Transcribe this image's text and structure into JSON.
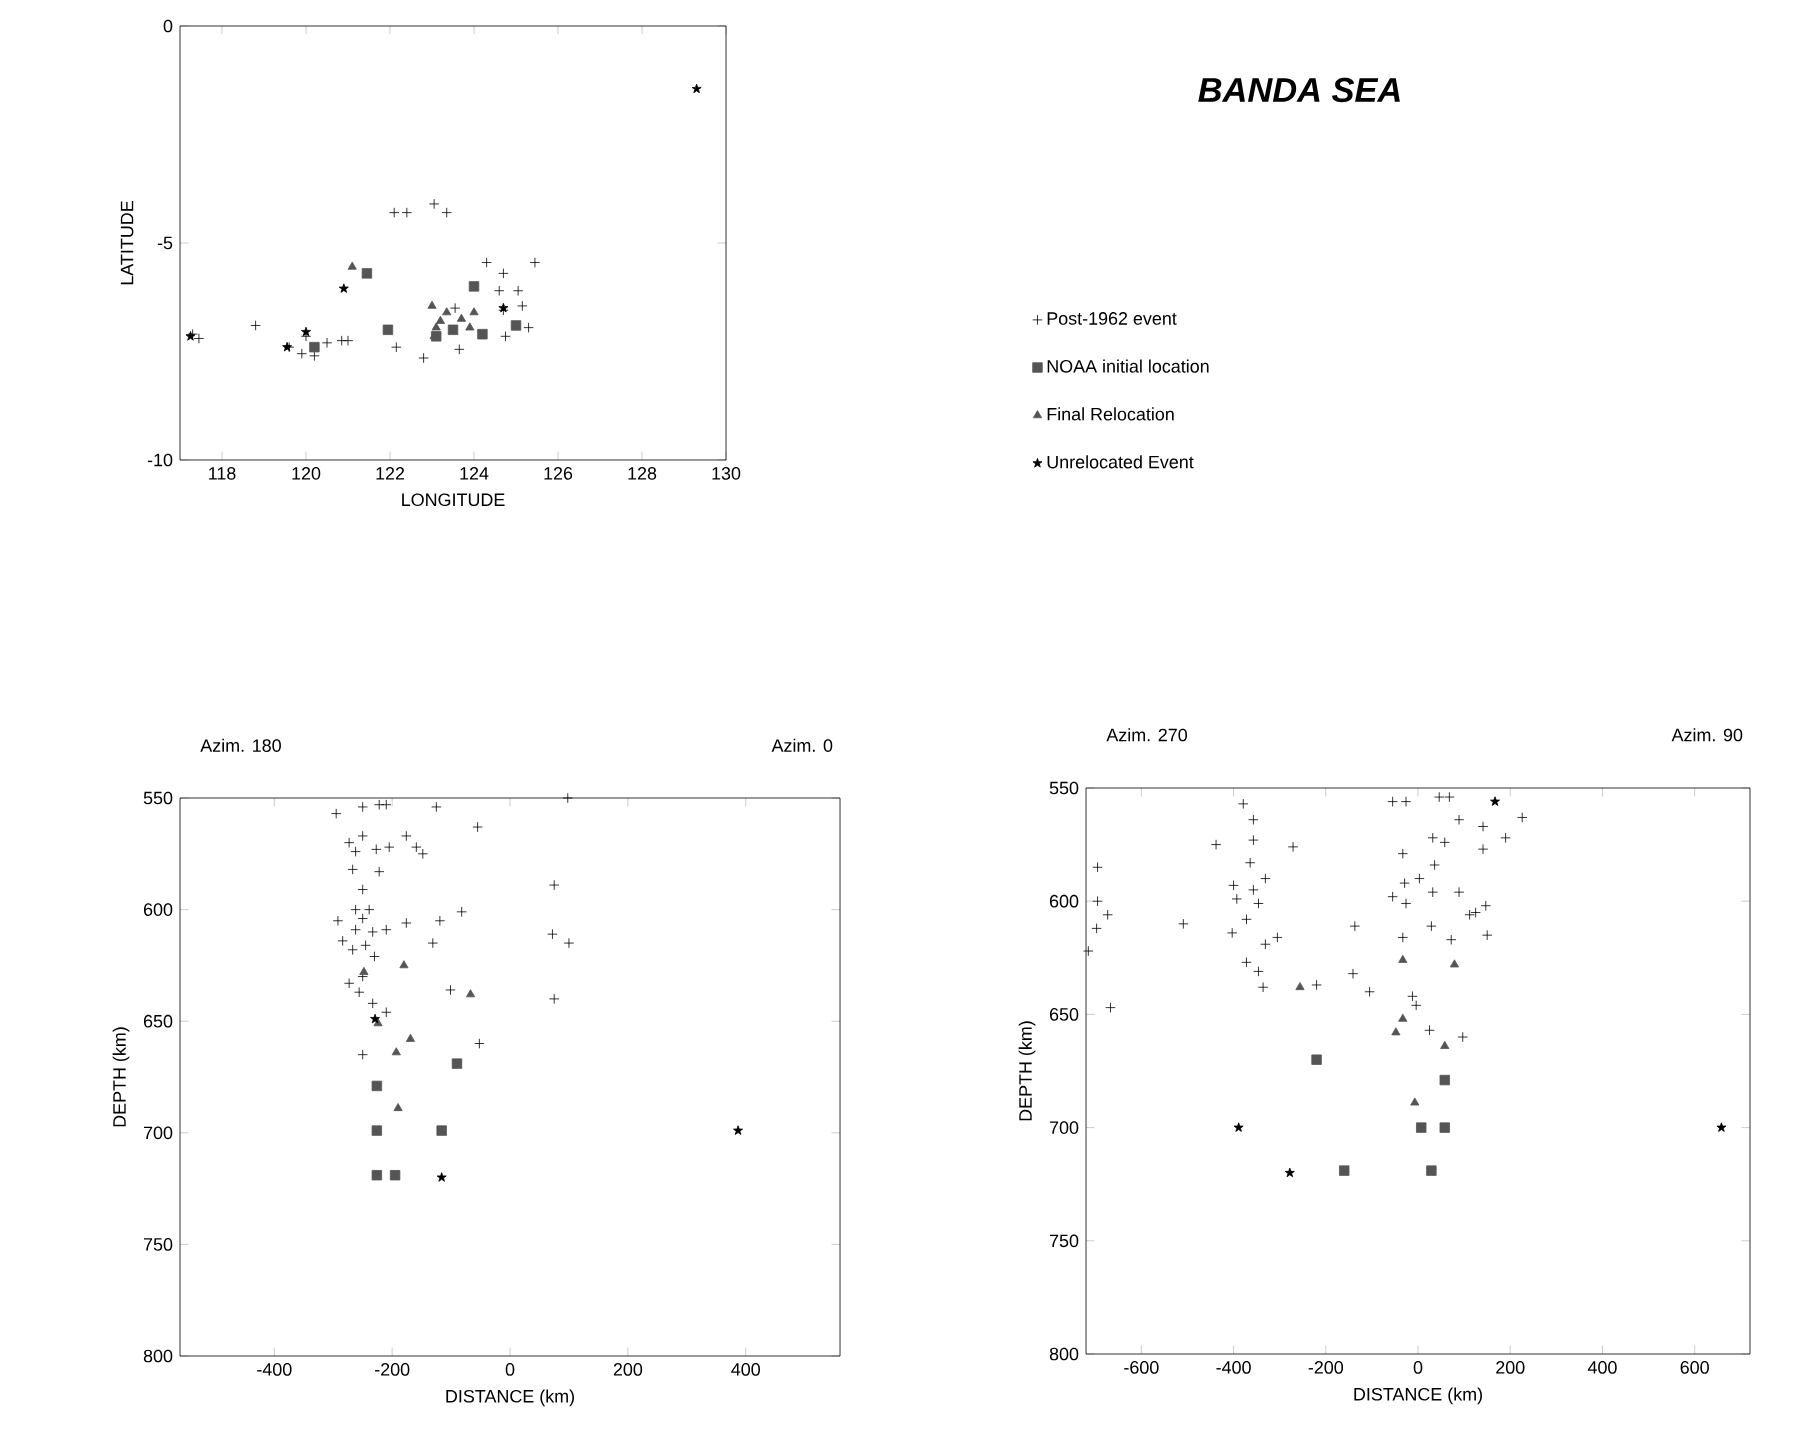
{
  "chart_data": [
    {
      "type": "scatter",
      "xlabel": "LONGITUDE",
      "ylabel": "LATITUDE",
      "xlim": [
        117,
        130
      ],
      "ylim": [
        -10,
        0
      ],
      "xticks": [
        118,
        120,
        122,
        124,
        126,
        128,
        130
      ],
      "yticks": [
        -10,
        -5,
        0
      ],
      "legend": "right",
      "series": [
        {
          "name": "Post-1962 event",
          "color": "#000000",
          "marker": "cross",
          "x": [
            117.45,
            118.8,
            119.6,
            119.9,
            120.2,
            120.5,
            120.85,
            121.0,
            122.1,
            122.4,
            123.05,
            123.35,
            122.15,
            122.8,
            123.65,
            124.3,
            124.7,
            125.45,
            124.6,
            125.05,
            125.15,
            124.7,
            125.3,
            124.75,
            123.55,
            117.3,
            120.0
          ],
          "values": [
            -7.2,
            -6.9,
            -7.4,
            -7.55,
            -7.6,
            -7.3,
            -7.25,
            -7.25,
            -4.3,
            -4.3,
            -4.1,
            -4.3,
            -7.4,
            -7.65,
            -7.45,
            -5.45,
            -5.7,
            -5.45,
            -6.1,
            -6.1,
            -6.45,
            -6.55,
            -6.95,
            -7.15,
            -6.5,
            -7.1,
            -7.15
          ]
        },
        {
          "name": "NOAA initial location",
          "color": "#555555",
          "marker": "square",
          "x": [
            121.95,
            121.45,
            124.0,
            123.5,
            120.2,
            123.1,
            124.2,
            125.0
          ],
          "values": [
            -7.0,
            -5.7,
            -6.0,
            -7.0,
            -7.4,
            -7.15,
            -7.1,
            -6.9
          ]
        },
        {
          "name": "Final Relocation",
          "color": "#555555",
          "marker": "triangle",
          "x": [
            121.1,
            123.0,
            123.35,
            124.0,
            123.7,
            123.1,
            124.2,
            123.05,
            123.9,
            123.2
          ],
          "values": [
            -5.55,
            -6.45,
            -6.6,
            -6.6,
            -6.75,
            -6.95,
            -7.15,
            -7.15,
            -6.95,
            -6.8
          ]
        },
        {
          "name": "Unrelocated Event",
          "color": "#000000",
          "marker": "star",
          "x": [
            129.3,
            120.9,
            124.7,
            117.25,
            119.55,
            120.0
          ],
          "values": [
            -1.45,
            -6.05,
            -6.5,
            -7.15,
            -7.4,
            -7.05
          ]
        }
      ]
    },
    {
      "type": "other",
      "title": "BANDA SEA"
    },
    {
      "type": "scatter",
      "xlabel": "DISTANCE (km)",
      "ylabel": "DEPTH (km)",
      "annotations": [
        "Azim. 180",
        "Azim. 0"
      ],
      "xlim": [
        -560,
        560
      ],
      "ylim": [
        800,
        550
      ],
      "xticks": [
        -400,
        -200,
        0,
        200,
        400
      ],
      "yticks": [
        550,
        600,
        650,
        700,
        750,
        800
      ],
      "series": [
        {
          "color": "#000000",
          "marker": "cross",
          "x": [
            -295,
            -250,
            -222,
            -210,
            -125,
            -55,
            98,
            -250,
            -176,
            -159,
            -148,
            -273,
            -262,
            -227,
            -205,
            -267,
            -222,
            75,
            -250,
            -262,
            -239,
            -82,
            -292,
            -250,
            -176,
            -119,
            -262,
            -210,
            -233,
            72,
            100,
            -131,
            -284,
            -267,
            -245,
            -230,
            -101,
            -256,
            -273,
            75,
            -233,
            -210,
            -52,
            -250,
            -250
          ],
          "values": [
            557,
            554,
            553,
            553,
            554,
            563,
            550,
            567,
            567,
            572,
            575,
            570,
            574,
            573,
            572,
            582,
            583,
            589,
            591,
            600,
            600,
            601,
            605,
            604,
            606,
            605,
            609,
            609,
            610,
            611,
            615,
            615,
            614,
            618,
            616,
            621,
            636,
            637,
            633,
            640,
            642,
            646,
            660,
            665,
            630
          ]
        },
        {
          "color": "#555555",
          "marker": "square",
          "x": [
            -226,
            -226,
            -116,
            -90,
            -226,
            -195
          ],
          "values": [
            679,
            699,
            699,
            669,
            719,
            719
          ]
        },
        {
          "color": "#555555",
          "marker": "triangle",
          "x": [
            -180,
            -67,
            -169,
            -193,
            -190,
            -248,
            -224
          ],
          "values": [
            625,
            638,
            658,
            664,
            689,
            628,
            651
          ]
        },
        {
          "color": "#000000",
          "marker": "star",
          "x": [
            387,
            -116,
            -229
          ],
          "values": [
            699,
            720,
            649
          ]
        }
      ]
    },
    {
      "type": "scatter",
      "xlabel": "DISTANCE (km)",
      "ylabel": "DEPTH (km)",
      "annotations": [
        "Azim. 270",
        "Azim. 90"
      ],
      "xlim": [
        -720,
        720
      ],
      "ylim": [
        800,
        550
      ],
      "xticks": [
        -600,
        -400,
        -200,
        0,
        200,
        400,
        600
      ],
      "yticks": [
        550,
        600,
        650,
        700,
        750,
        800
      ],
      "series": [
        {
          "color": "#000000",
          "marker": "cross",
          "x": [
            -55,
            -26,
            46,
            68,
            -379,
            -357,
            -357,
            89,
            226,
            32,
            58,
            141,
            141,
            190,
            -271,
            -438,
            -33,
            36,
            -364,
            -695,
            -400,
            -357,
            -331,
            -29,
            3,
            32,
            89,
            -55,
            -393,
            -695,
            -26,
            -346,
            147,
            125,
            -372,
            -509,
            -697,
            -673,
            -137,
            29,
            -403,
            -305,
            -331,
            -33,
            72,
            150,
            -372,
            -346,
            -336,
            -141,
            -105,
            -220,
            -12,
            -4,
            -667,
            25,
            97,
            -715,
            112
          ],
          "values": [
            556,
            556,
            554,
            554,
            557,
            564,
            573,
            564,
            563,
            572,
            574,
            567,
            577,
            572,
            576,
            575,
            579,
            584,
            583,
            585,
            593,
            595,
            590,
            592,
            590,
            596,
            596,
            598,
            599,
            600,
            601,
            601,
            602,
            605,
            608,
            610,
            612,
            606,
            611,
            611,
            614,
            616,
            619,
            616,
            617,
            615,
            627,
            631,
            638,
            632,
            640,
            637,
            642,
            646,
            647,
            657,
            660,
            622,
            606
          ]
        },
        {
          "color": "#555555",
          "marker": "square",
          "x": [
            -220,
            58,
            58,
            7,
            -160,
            29
          ],
          "values": [
            670,
            679,
            700,
            700,
            719,
            719
          ]
        },
        {
          "color": "#555555",
          "marker": "triangle",
          "x": [
            -33,
            79,
            -256,
            -33,
            -48,
            58,
            -7
          ],
          "values": [
            626,
            628,
            638,
            652,
            658,
            664,
            689
          ]
        },
        {
          "color": "#000000",
          "marker": "star",
          "x": [
            -389,
            -278,
            658,
            167
          ],
          "values": [
            700,
            720,
            700,
            556
          ]
        }
      ]
    }
  ]
}
